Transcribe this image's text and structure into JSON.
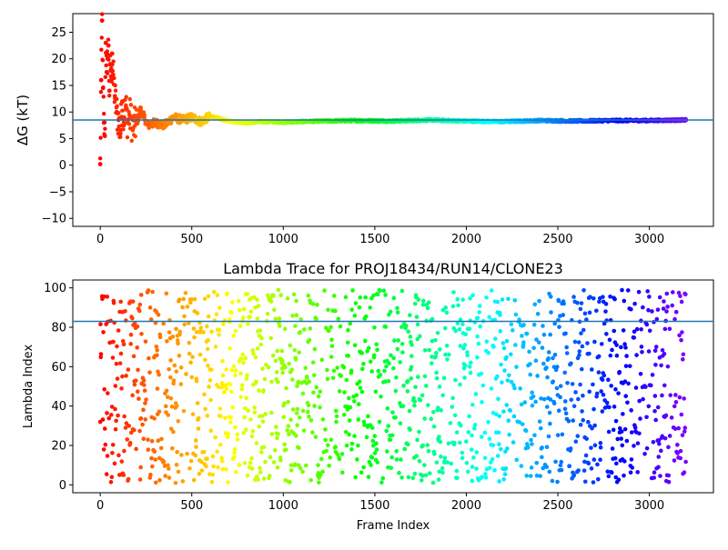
{
  "chart_data": [
    {
      "type": "scatter",
      "title": "",
      "xlabel": "",
      "ylabel": "ΔG (kT)",
      "xlim": [
        -150,
        3350
      ],
      "ylim": [
        -11.5,
        28.5
      ],
      "xticks": [
        0,
        500,
        1000,
        1500,
        2000,
        2500,
        3000
      ],
      "yticks": [
        -10,
        -5,
        0,
        5,
        10,
        15,
        20,
        25
      ],
      "colormap": "rainbow (red to violet along frame index)",
      "reference_line": {
        "y": 8.5,
        "color": "#1f77b4"
      },
      "series": [
        {
          "x": [
            0,
            5,
            10,
            15,
            20,
            25,
            30,
            35,
            40,
            45,
            50,
            55,
            60,
            65,
            70,
            80,
            90,
            100,
            110,
            120,
            130,
            140,
            150,
            160,
            180,
            200,
            220,
            240,
            260,
            300,
            350,
            400,
            450,
            500,
            550,
            600,
            700,
            800,
            900,
            1000,
            1200,
            1400,
            1600,
            1800,
            2000,
            2200,
            2400,
            2600,
            2800,
            3000,
            3200
          ],
          "y": [
            0.2,
            16,
            27.2,
            14.5,
            8,
            5.5,
            23,
            17.5,
            20,
            22.5,
            14,
            19,
            16,
            21,
            17,
            13,
            10,
            8.5,
            6,
            12,
            9,
            11,
            8,
            9.5,
            7,
            8,
            10.5,
            9,
            7.5,
            8,
            7.5,
            9,
            8.5,
            9,
            8.2,
            9.2,
            8.3,
            8,
            8.2,
            8.1,
            8.3,
            8.4,
            8.3,
            8.5,
            8.3,
            8.2,
            8.4,
            8.3,
            8.4,
            8.4,
            8.5
          ]
        }
      ]
    },
    {
      "type": "scatter",
      "title": "Lambda Trace for PROJ18434/RUN14/CLONE23",
      "xlabel": "Frame Index",
      "ylabel": "Lambda Index",
      "xlim": [
        -150,
        3350
      ],
      "ylim": [
        -4,
        104
      ],
      "xticks": [
        0,
        500,
        1000,
        1500,
        2000,
        2500,
        3000
      ],
      "yticks": [
        0,
        20,
        40,
        60,
        80,
        100
      ],
      "colormap": "rainbow (red to violet along frame index)",
      "reference_line": {
        "y": 83,
        "color": "#1f77b4"
      },
      "series": [
        {
          "x": [
            0,
            3200
          ],
          "y": [
            0,
            99
          ],
          "note_range": [
            0,
            99
          ]
        }
      ]
    }
  ]
}
